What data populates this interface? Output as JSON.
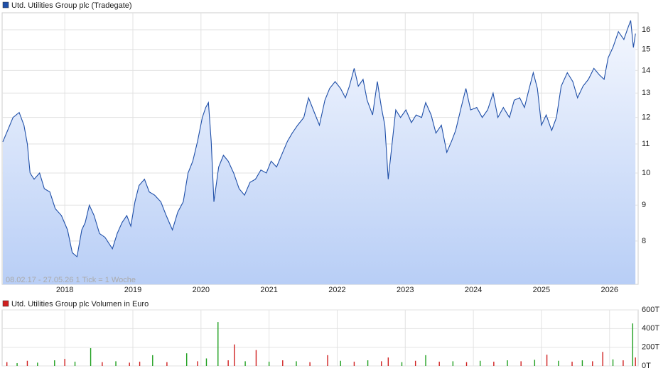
{
  "chart_data": [
    {
      "type": "line",
      "title": "Utd. Utilities Group plc (Tradegate)",
      "note": "08.02.17 - 27.05.26   1 Tick = 1 Woche",
      "color": "#1f4fa8",
      "log_scale": true,
      "grid": true,
      "xlim": [
        2017.08,
        2026.42
      ],
      "xticks": [
        2018,
        2019,
        2020,
        2021,
        2022,
        2023,
        2024,
        2025,
        2026
      ],
      "ylim": [
        6.94,
        16.92
      ],
      "yticks": [
        8,
        9,
        10,
        11,
        12,
        13,
        14,
        15,
        16
      ],
      "x": [
        2017.09,
        2017.16,
        2017.24,
        2017.33,
        2017.4,
        2017.45,
        2017.49,
        2017.55,
        2017.63,
        2017.7,
        2017.78,
        2017.86,
        2017.95,
        2018.04,
        2018.11,
        2018.18,
        2018.25,
        2018.3,
        2018.36,
        2018.43,
        2018.51,
        2018.59,
        2018.7,
        2018.77,
        2018.84,
        2018.91,
        2018.97,
        2019.03,
        2019.09,
        2019.17,
        2019.24,
        2019.32,
        2019.41,
        2019.49,
        2019.58,
        2019.66,
        2019.74,
        2019.81,
        2019.88,
        2019.95,
        2020.02,
        2020.07,
        2020.11,
        2020.15,
        2020.19,
        2020.26,
        2020.33,
        2020.4,
        2020.48,
        2020.56,
        2020.64,
        2020.72,
        2020.8,
        2020.88,
        2020.96,
        2021.03,
        2021.11,
        2021.2,
        2021.27,
        2021.34,
        2021.42,
        2021.51,
        2021.58,
        2021.65,
        2021.74,
        2021.82,
        2021.89,
        2021.97,
        2022.05,
        2022.12,
        2022.18,
        2022.25,
        2022.31,
        2022.38,
        2022.44,
        2022.52,
        2022.59,
        2022.65,
        2022.7,
        2022.75,
        2022.81,
        2022.86,
        2022.93,
        2023.01,
        2023.09,
        2023.16,
        2023.24,
        2023.3,
        2023.38,
        2023.45,
        2023.53,
        2023.61,
        2023.68,
        2023.74,
        2023.82,
        2023.89,
        2023.96,
        2024.05,
        2024.13,
        2024.21,
        2024.29,
        2024.36,
        2024.44,
        2024.53,
        2024.6,
        2024.68,
        2024.75,
        2024.82,
        2024.88,
        2024.94,
        2025.0,
        2025.07,
        2025.15,
        2025.22,
        2025.29,
        2025.38,
        2025.46,
        2025.53,
        2025.61,
        2025.69,
        2025.77,
        2025.85,
        2025.92,
        2025.98,
        2026.05,
        2026.13,
        2026.21,
        2026.27,
        2026.31,
        2026.35,
        2026.38
      ],
      "values": [
        11.08,
        11.5,
        12.0,
        12.2,
        11.7,
        11.0,
        10.0,
        9.8,
        10.0,
        9.5,
        9.4,
        8.9,
        8.7,
        8.3,
        7.7,
        7.6,
        8.3,
        8.5,
        9.0,
        8.7,
        8.2,
        8.1,
        7.8,
        8.2,
        8.5,
        8.7,
        8.4,
        9.1,
        9.6,
        9.8,
        9.4,
        9.3,
        9.1,
        8.7,
        8.3,
        8.8,
        9.1,
        10.0,
        10.4,
        11.1,
        12.0,
        12.4,
        12.6,
        11.1,
        9.1,
        10.2,
        10.6,
        10.4,
        10.0,
        9.5,
        9.3,
        9.7,
        9.8,
        10.1,
        10.0,
        10.4,
        10.2,
        10.7,
        11.1,
        11.4,
        11.7,
        12.0,
        12.8,
        12.3,
        11.7,
        12.7,
        13.2,
        13.5,
        13.2,
        12.8,
        13.3,
        14.1,
        13.3,
        13.6,
        12.7,
        12.1,
        13.5,
        12.4,
        11.7,
        9.8,
        11.1,
        12.3,
        12.0,
        12.3,
        11.8,
        12.1,
        12.0,
        12.6,
        12.1,
        11.4,
        11.7,
        10.7,
        11.1,
        11.5,
        12.4,
        13.2,
        12.3,
        12.4,
        12.0,
        12.3,
        13.0,
        12.0,
        12.4,
        12.0,
        12.7,
        12.8,
        12.4,
        13.2,
        13.9,
        13.2,
        11.7,
        12.1,
        11.5,
        12.0,
        13.3,
        13.9,
        13.5,
        12.8,
        13.3,
        13.6,
        14.1,
        13.8,
        13.6,
        14.6,
        15.1,
        15.9,
        15.5,
        16.1,
        16.5,
        15.1,
        15.8
      ]
    },
    {
      "type": "bar",
      "title": "Utd. Utilities Group plc Volumen in Euro",
      "xlim": [
        2017.08,
        2026.42
      ],
      "ylim": [
        0,
        600
      ],
      "grid": true,
      "yticks": [
        {
          "value": 0,
          "label": "0T"
        },
        {
          "value": 200,
          "label": "200T"
        },
        {
          "value": 400,
          "label": "400T"
        },
        {
          "value": 600,
          "label": "600T"
        }
      ],
      "x": [
        2017.15,
        2017.3,
        2017.45,
        2017.6,
        2017.85,
        2018.0,
        2018.15,
        2018.38,
        2018.55,
        2018.75,
        2018.95,
        2019.1,
        2019.29,
        2019.5,
        2019.79,
        2019.95,
        2020.08,
        2020.25,
        2020.4,
        2020.49,
        2020.65,
        2020.81,
        2021.0,
        2021.2,
        2021.4,
        2021.6,
        2021.86,
        2022.05,
        2022.25,
        2022.45,
        2022.65,
        2022.75,
        2022.95,
        2023.15,
        2023.3,
        2023.5,
        2023.7,
        2023.9,
        2024.1,
        2024.3,
        2024.5,
        2024.7,
        2024.9,
        2025.08,
        2025.25,
        2025.45,
        2025.6,
        2025.75,
        2025.9,
        2026.05,
        2026.2,
        2026.34,
        2026.38
      ],
      "values": [
        40,
        30,
        55,
        35,
        60,
        75,
        45,
        190,
        40,
        50,
        35,
        45,
        115,
        40,
        135,
        50,
        80,
        470,
        60,
        230,
        50,
        170,
        45,
        60,
        50,
        40,
        115,
        55,
        45,
        60,
        50,
        90,
        40,
        55,
        115,
        45,
        50,
        40,
        55,
        45,
        60,
        50,
        65,
        120,
        55,
        45,
        60,
        50,
        150,
        70,
        60,
        455,
        90
      ],
      "colors": [
        "#d02020",
        "#20a020",
        "#d02020",
        "#20a020",
        "#20a020",
        "#d02020",
        "#20a020",
        "#20a020",
        "#d02020",
        "#20a020",
        "#d02020",
        "#d02020",
        "#20a020",
        "#d02020",
        "#20a020",
        "#d02020",
        "#20a020",
        "#20a020",
        "#d02020",
        "#d02020",
        "#20a020",
        "#d02020",
        "#20a020",
        "#d02020",
        "#20a020",
        "#d02020",
        "#d02020",
        "#20a020",
        "#d02020",
        "#20a020",
        "#d02020",
        "#d02020",
        "#20a020",
        "#d02020",
        "#20a020",
        "#d02020",
        "#20a020",
        "#d02020",
        "#20a020",
        "#d02020",
        "#20a020",
        "#d02020",
        "#20a020",
        "#d02020",
        "#20a020",
        "#d02020",
        "#20a020",
        "#d02020",
        "#d02020",
        "#20a020",
        "#d02020",
        "#20a020",
        "#d02020"
      ]
    }
  ]
}
